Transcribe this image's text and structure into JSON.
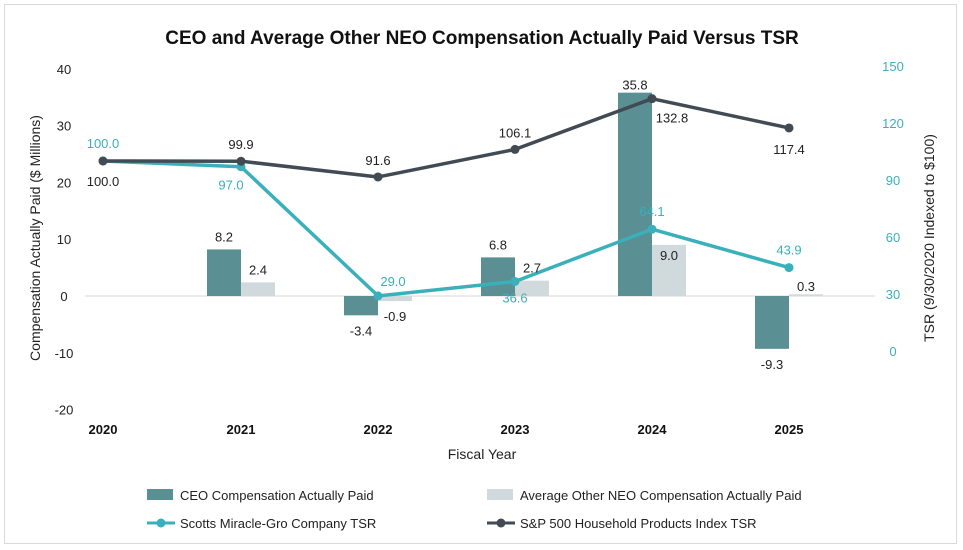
{
  "chart_data": {
    "type": "bar+line",
    "title": "CEO and Average Other NEO Compensation Actually Paid Versus TSR",
    "xlabel": "Fiscal Year",
    "ylabel_left": "Compensation Actually Paid ($ Millions)",
    "ylabel_right": "TSR (9/30/2020 Indexed to $100)",
    "categories": [
      "2020",
      "2021",
      "2022",
      "2023",
      "2024",
      "2025"
    ],
    "left_axis": {
      "min": -20,
      "max": 40,
      "ticks": [
        "-20",
        "-10",
        "0",
        "10",
        "20",
        "30",
        "40"
      ]
    },
    "right_axis": {
      "min": 0,
      "max": 150,
      "ticks": [
        "0",
        "30",
        "60",
        "90",
        "120",
        "150"
      ]
    },
    "bar_series": [
      {
        "name": "CEO Compensation Actually Paid",
        "color": "#5a8f94",
        "values": [
          null,
          8.2,
          -3.4,
          6.8,
          35.8,
          -9.3
        ],
        "labels": [
          "",
          "8.2",
          "-3.4",
          "6.8",
          "35.8",
          "-9.3"
        ]
      },
      {
        "name": "Average Other NEO Compensation Actually Paid",
        "color": "#d0dadc",
        "values": [
          null,
          2.4,
          -0.9,
          2.7,
          9.0,
          0.3
        ],
        "labels": [
          "",
          "2.4",
          "-0.9",
          "2.7",
          "9.0",
          "0.3"
        ]
      }
    ],
    "line_series": [
      {
        "name": "Scotts Miracle-Gro Company TSR",
        "color": "#3ab0bb",
        "label_color": "#3ab0bb",
        "values": [
          100.0,
          97.0,
          29.0,
          36.6,
          64.1,
          43.9
        ],
        "labels": [
          "100.0",
          "97.0",
          "29.0",
          "36.6",
          "64.1",
          "43.9"
        ]
      },
      {
        "name": "S&P 500 Household Products Index TSR",
        "color": "#424b54",
        "label_color": "#222222",
        "values": [
          100.0,
          99.9,
          91.6,
          106.1,
          132.8,
          117.4
        ],
        "labels": [
          "100.0",
          "99.9",
          "91.6",
          "106.1",
          "132.8",
          "117.4"
        ]
      }
    ],
    "legend": {
      "placement": "bottom",
      "items": [
        "CEO Compensation Actually Paid",
        "Average Other NEO Compensation Actually Paid",
        "Scotts Miracle-Gro Company TSR",
        "S&P 500 Household Products Index TSR"
      ]
    },
    "grid": false
  }
}
